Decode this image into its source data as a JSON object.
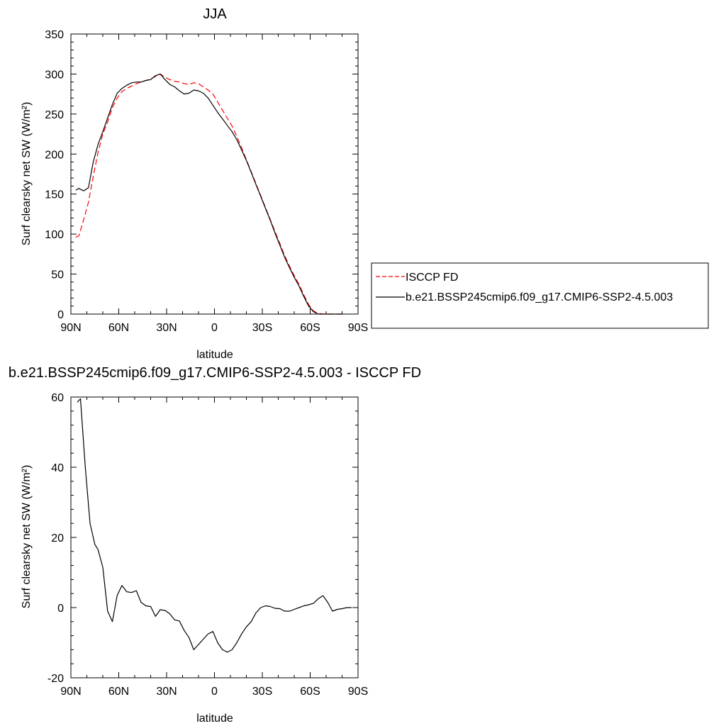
{
  "chart_data": [
    {
      "type": "line",
      "title": "JJA",
      "xlabel": "latitude",
      "ylabel": "Surf clearsky net SW (W/m²)",
      "xlim": [
        90,
        -90
      ],
      "ylim": [
        0,
        350
      ],
      "xticks": [
        90,
        60,
        30,
        0,
        -30,
        -60,
        -90
      ],
      "xtick_labels": [
        "90N",
        "60N",
        "30N",
        "0",
        "30S",
        "60S",
        "90S"
      ],
      "yticks": [
        0,
        50,
        100,
        150,
        200,
        250,
        300,
        350
      ],
      "ytick_labels": [
        "0",
        "50",
        "100",
        "150",
        "200",
        "250",
        "300",
        "350"
      ],
      "grid": false,
      "legend_position": "right",
      "series": [
        {
          "name": "ISCCP FD",
          "color": "#ff0000",
          "dash": "dashed",
          "x": [
            87,
            85,
            82,
            79,
            76,
            73,
            70,
            67,
            64,
            61,
            58,
            55,
            52,
            49,
            46,
            43,
            40,
            37,
            34,
            31,
            28,
            25,
            22,
            19,
            16,
            13,
            10,
            7,
            4,
            1,
            -2,
            -5,
            -8,
            -11,
            -14,
            -17,
            -20,
            -23,
            -26,
            -29,
            -32,
            -35,
            -38,
            -41,
            -44,
            -47,
            -50,
            -53,
            -56,
            -59,
            -62,
            -65,
            -68,
            -71,
            -74,
            -77,
            -80
          ],
          "y": [
            96,
            98,
            118,
            140,
            172,
            202,
            225,
            240,
            258,
            270,
            278,
            282,
            285,
            288,
            290,
            292,
            294,
            297,
            300,
            296,
            293,
            291,
            290,
            288,
            287,
            289,
            288,
            284,
            280,
            275,
            265,
            255,
            245,
            235,
            222,
            208,
            193,
            178,
            163,
            148,
            133,
            118,
            103,
            88,
            73,
            60,
            48,
            37,
            24,
            12,
            4,
            1,
            0,
            0,
            0,
            0,
            0
          ]
        },
        {
          "name": "b.e21.BSSP245cmip6.f09_g17.CMIP6-SSP2-4.5.003",
          "color": "#000000",
          "dash": "solid",
          "x": [
            87,
            85,
            82,
            79,
            76,
            73,
            70,
            67,
            64,
            61,
            58,
            55,
            52,
            49,
            46,
            43,
            40,
            37,
            34,
            31,
            28,
            25,
            22,
            19,
            16,
            13,
            10,
            7,
            4,
            1,
            -2,
            -5,
            -8,
            -11,
            -14,
            -17,
            -20,
            -23,
            -26,
            -29,
            -32,
            -35,
            -38,
            -41,
            -44,
            -47,
            -50,
            -53,
            -56,
            -59,
            -62,
            -65,
            -68,
            -71,
            -74,
            -77,
            -80
          ],
          "y": [
            155,
            157,
            154,
            158,
            190,
            212,
            228,
            245,
            262,
            276,
            282,
            286,
            289,
            290,
            290,
            292,
            293,
            298,
            300,
            293,
            287,
            284,
            279,
            275,
            276,
            280,
            279,
            276,
            270,
            261,
            252,
            244,
            236,
            228,
            218,
            205,
            192,
            177,
            162,
            147,
            132,
            117,
            101,
            86,
            71,
            58,
            46,
            35,
            22,
            10,
            3,
            0,
            0,
            0,
            0,
            0,
            0
          ]
        }
      ]
    },
    {
      "type": "line",
      "title": "b.e21.BSSP245cmip6.f09_g17.CMIP6-SSP2-4.5.003 - ISCCP FD",
      "xlabel": "latitude",
      "ylabel": "Surf clearsky net SW (W/m²)",
      "xlim": [
        90,
        -90
      ],
      "ylim": [
        -20,
        60
      ],
      "xticks": [
        90,
        60,
        30,
        0,
        -30,
        -60,
        -90
      ],
      "xtick_labels": [
        "90N",
        "60N",
        "30N",
        "0",
        "30S",
        "60S",
        "90S"
      ],
      "yticks": [
        -20,
        0,
        20,
        40,
        60
      ],
      "ytick_labels": [
        "-20",
        "0",
        "20",
        "40",
        "60"
      ],
      "grid": false,
      "series": [
        {
          "color": "#000000",
          "dash": "solid",
          "x": [
            86,
            84,
            81,
            78,
            75,
            73,
            70,
            67,
            64,
            61,
            58,
            55,
            52,
            49,
            46,
            43,
            40,
            37,
            34,
            31,
            28,
            25,
            22,
            19,
            16,
            13,
            10,
            7,
            4,
            1,
            -2,
            -5,
            -8,
            -11,
            -14,
            -17,
            -20,
            -23,
            -26,
            -29,
            -32,
            -35,
            -38,
            -41,
            -44,
            -47,
            -50,
            -53,
            -56,
            -59,
            -62,
            -65,
            -68,
            -71,
            -74,
            -77,
            -80,
            -83,
            -86
          ],
          "y": [
            58.5,
            59.5,
            40,
            24,
            18,
            16.5,
            11.5,
            -1,
            -4,
            3.5,
            6.3,
            4.5,
            4.3,
            4.8,
            1.5,
            0.5,
            0.3,
            -2.5,
            -0.6,
            -0.8,
            -1.8,
            -3.5,
            -3.8,
            -6.5,
            -8.5,
            -12,
            -10.5,
            -9,
            -7.5,
            -6.8,
            -10,
            -12,
            -12.7,
            -12,
            -10,
            -7.5,
            -5.5,
            -4,
            -1.5,
            0,
            0.5,
            0.3,
            -0.2,
            -0.3,
            -1,
            -1,
            -0.5,
            0,
            0.5,
            0.8,
            1.2,
            2.5,
            3.4,
            1.5,
            -1,
            -0.5,
            -0.3,
            0,
            0
          ]
        }
      ]
    }
  ]
}
